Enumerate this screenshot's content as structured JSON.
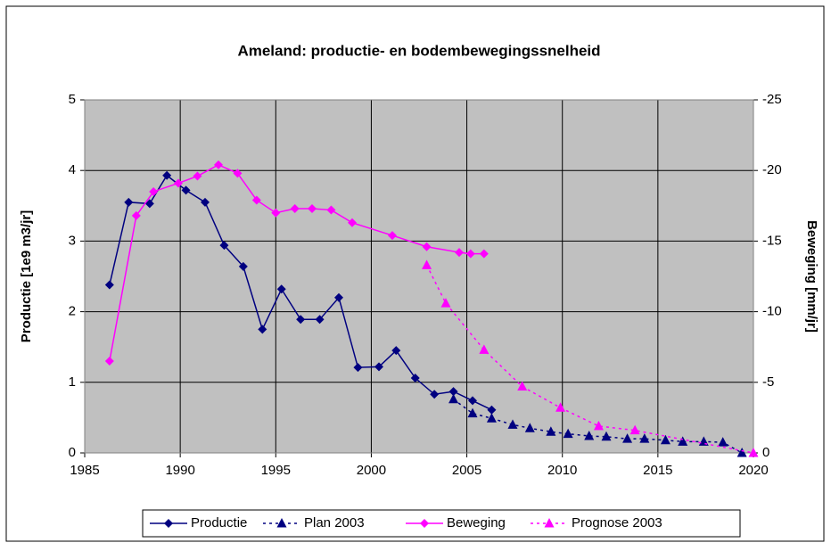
{
  "chart_data": {
    "type": "line",
    "title": "Ameland: productie- en bodembewegingssnelheid",
    "ylabel": "Productie [1e9 m3/jr]",
    "y2label": "Beweging [mm/jr]",
    "xlim": [
      1985,
      2020
    ],
    "xticks": [
      1985,
      1990,
      1995,
      2000,
      2005,
      2010,
      2015,
      2020
    ],
    "ylim": [
      0,
      5
    ],
    "yticks": [
      0,
      1,
      2,
      3,
      4,
      5
    ],
    "y2lim": [
      0,
      -25
    ],
    "y2ticks": [
      0,
      -5,
      -10,
      -15,
      -20,
      -25
    ],
    "grid": true,
    "legend": "bottom",
    "series": [
      {
        "name": "Productie",
        "color": "#000080",
        "marker": "diamond",
        "dash": false,
        "axis": "y",
        "x": [
          1986.3,
          1987.3,
          1988.4,
          1989.3,
          1990.3,
          1991.3,
          1992.3,
          1993.3,
          1994.3,
          1995.3,
          1996.3,
          1997.3,
          1998.3,
          1999.3,
          2000.4,
          2001.3,
          2002.3,
          2003.3,
          2004.3,
          2005.3,
          2006.3
        ],
        "values": [
          2.38,
          3.55,
          3.53,
          3.93,
          3.72,
          3.55,
          2.94,
          2.64,
          1.75,
          2.32,
          1.89,
          1.89,
          2.2,
          1.21,
          1.22,
          1.45,
          1.06,
          0.83,
          0.87,
          0.74,
          0.61
        ]
      },
      {
        "name": "Plan 2003",
        "color": "#000080",
        "marker": "triangle",
        "dash": true,
        "axis": "y",
        "x": [
          2004.3,
          2005.3,
          2006.3,
          2007.4,
          2008.3,
          2009.4,
          2010.3,
          2011.4,
          2012.3,
          2013.4,
          2014.3,
          2015.4,
          2016.3,
          2017.4,
          2018.4,
          2019.4
        ],
        "values": [
          0.76,
          0.56,
          0.49,
          0.4,
          0.35,
          0.3,
          0.27,
          0.24,
          0.23,
          0.2,
          0.2,
          0.18,
          0.16,
          0.16,
          0.15,
          0
        ]
      },
      {
        "name": "Beweging",
        "color": "#ff00ff",
        "marker": "diamond",
        "dash": false,
        "axis": "y2",
        "x": [
          1986.3,
          1987.7,
          1988.6,
          1989.9,
          1990.9,
          1992.0,
          1993.0,
          1994.0,
          1995.0,
          1996.0,
          1996.9,
          1997.9,
          1999.0,
          2001.1,
          2002.9,
          2004.6,
          2005.2,
          2005.9
        ],
        "values": [
          -6.5,
          -16.8,
          -18.5,
          -19.1,
          -19.6,
          -20.4,
          -19.8,
          -17.9,
          -17.0,
          -17.3,
          -17.3,
          -17.2,
          -16.3,
          -15.4,
          -14.6,
          -14.2,
          -14.1,
          -14.1
        ]
      },
      {
        "name": "Prognose 2003",
        "color": "#ff00ff",
        "marker": "triangle",
        "dash": true,
        "axis": "y2",
        "x": [
          2002.9,
          2003.9,
          2005.9,
          2007.9,
          2009.9,
          2011.9,
          2013.8,
          2020
        ],
        "values": [
          -13.3,
          -10.6,
          -7.3,
          -4.7,
          -3.2,
          -1.9,
          -1.6,
          0
        ]
      }
    ]
  }
}
